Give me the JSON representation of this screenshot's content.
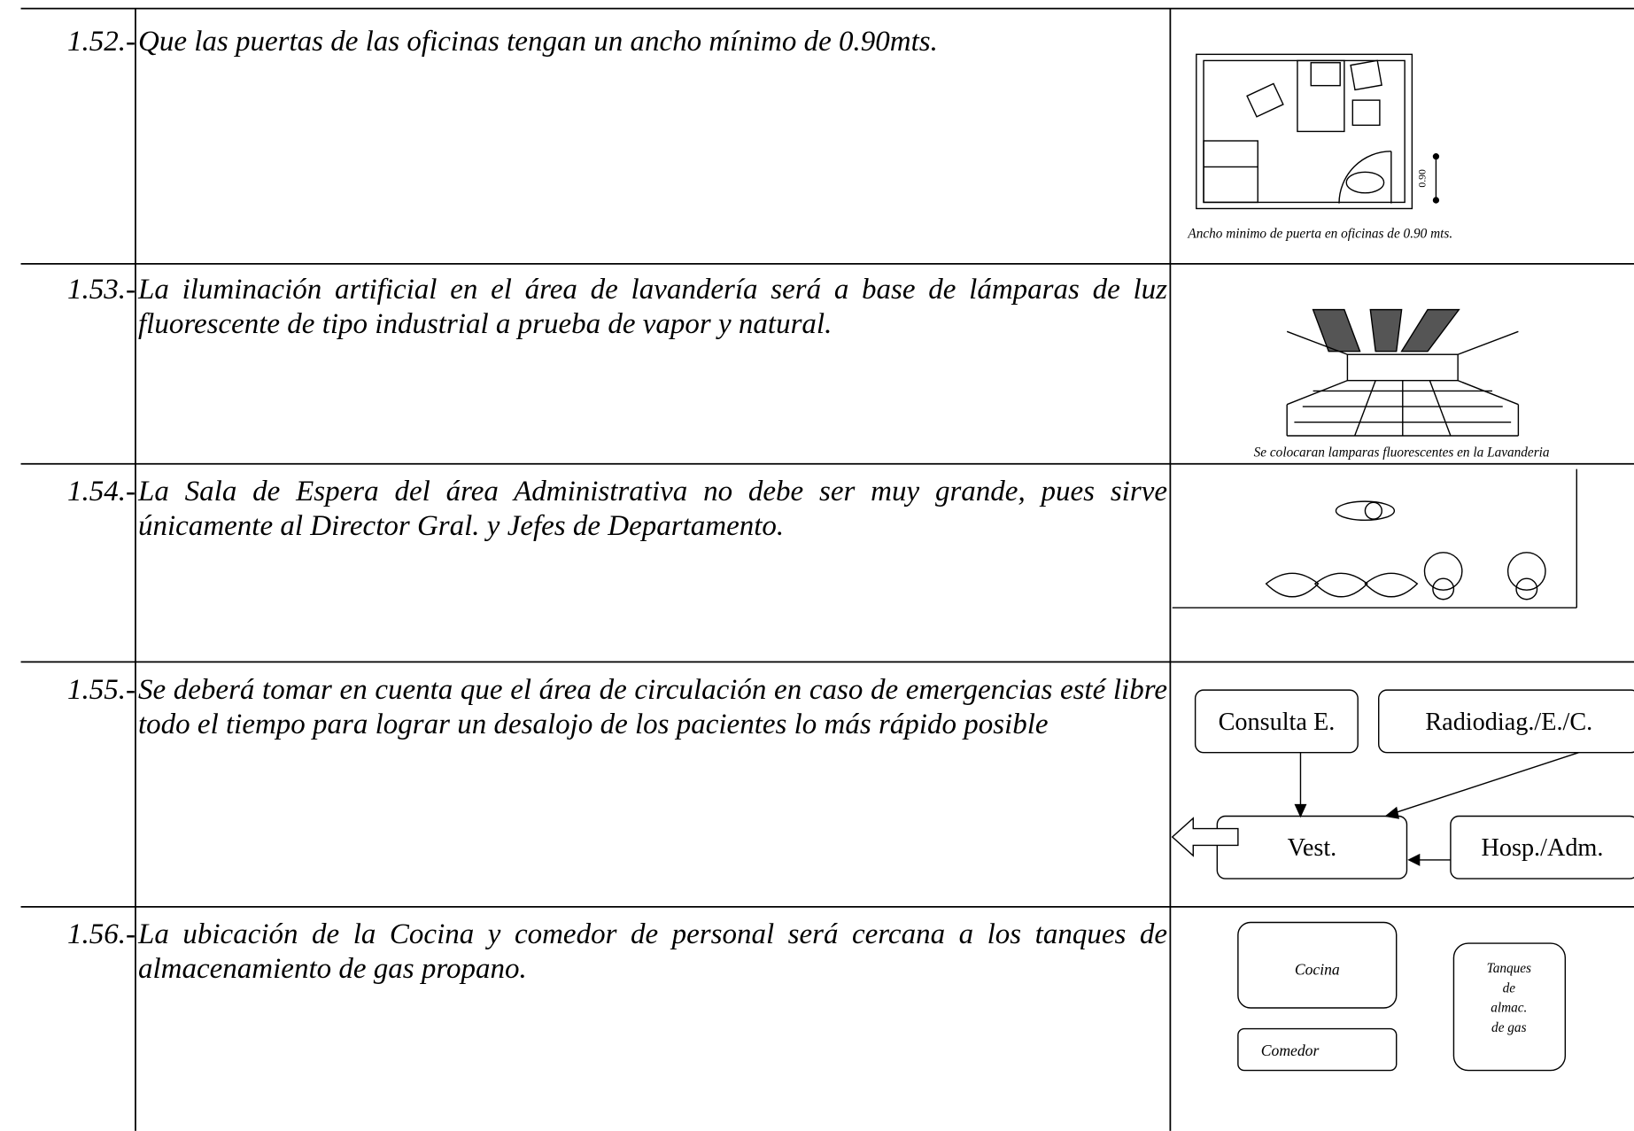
{
  "rows": [
    {
      "number": "1.52.-",
      "text": "Que las puertas de las oficinas tengan un ancho mínimo de 0.90mts.",
      "caption": "Ancho minimo de puerta en oficinas de 0.90 mts.",
      "figure_label": "0.90"
    },
    {
      "number": "1.53.-",
      "text": "La iluminación artificial en el área de lavandería será a base de lámparas de luz fluorescente de tipo industrial a prueba de vapor y natural.",
      "caption": "Se colocaran lamparas fluorescentes en la Lavanderia"
    },
    {
      "number": "1.54.-",
      "text": "La Sala de Espera del área Administrativa no debe ser muy grande, pues sirve únicamente al Director Gral. y Jefes de Departamento."
    },
    {
      "number": "1.55.-",
      "text": "Se deberá tomar en cuenta que el área de circulación en caso de emergencias esté libre todo el tiempo para lograr un desalojo de los pacientes lo más rápido posible",
      "diagram": {
        "nodes": [
          "Consulta E.",
          "Radiodiag./E./C.",
          "Vest.",
          "Hosp./Adm."
        ]
      }
    },
    {
      "number": "1.56.-",
      "text": "La ubicación de la Cocina y comedor de personal será cercana a los tanques de almacenamiento de gas propano.",
      "diagram": {
        "nodes": [
          "Cocina",
          "Comedor"
        ],
        "tank_lines": [
          "Tanques",
          "de",
          "almac.",
          "de gas"
        ]
      }
    }
  ]
}
